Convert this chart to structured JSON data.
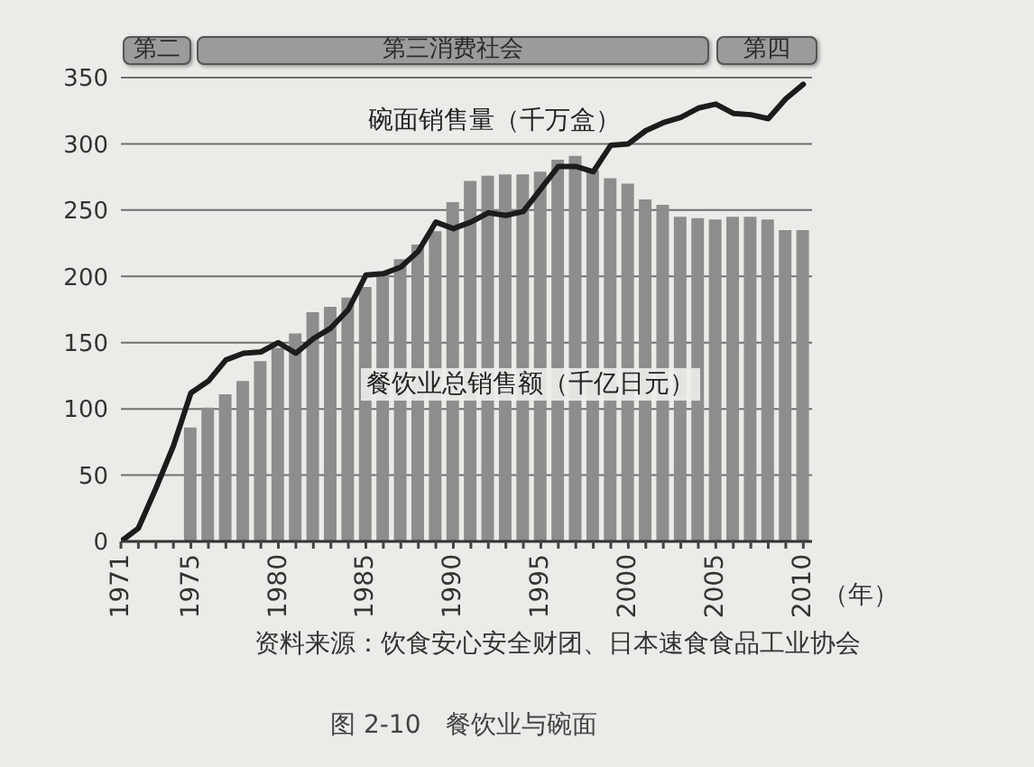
{
  "chart_data": {
    "type": "bar",
    "title": "图 2-10　餐饮业与碗面",
    "xlabel": "（年）",
    "annotations": [
      "第二",
      "第三消费社会",
      "第四",
      "资料来源：饮食安心安全财团、日本速食食品工业协会"
    ],
    "series": [
      {
        "name": "餐饮业总销售额（千亿日元）",
        "type": "bar",
        "color": "#8d8d8d",
        "x": [
          1975,
          1976,
          1977,
          1978,
          1979,
          1980,
          1981,
          1982,
          1983,
          1984,
          1985,
          1986,
          1987,
          1988,
          1989,
          1990,
          1991,
          1992,
          1993,
          1994,
          1995,
          1996,
          1997,
          1998,
          1999,
          2000,
          2001,
          2002,
          2003,
          2004,
          2005,
          2006,
          2007,
          2008,
          2009,
          2010
        ],
        "values": [
          86,
          101,
          111,
          121,
          136,
          146,
          157,
          173,
          177,
          184,
          192,
          202,
          213,
          224,
          234,
          256,
          272,
          276,
          277,
          277,
          279,
          288,
          291,
          280,
          274,
          270,
          258,
          254,
          245,
          244,
          243,
          245,
          245,
          243,
          235,
          235
        ]
      },
      {
        "name": "碗面销售量（千万盒）",
        "type": "line",
        "color": "#1c1c1c",
        "x": [
          1971,
          1972,
          1973,
          1974,
          1975,
          1976,
          1977,
          1978,
          1979,
          1980,
          1981,
          1982,
          1983,
          1984,
          1985,
          1986,
          1987,
          1988,
          1989,
          1990,
          1991,
          1992,
          1993,
          1994,
          1995,
          1996,
          1997,
          1998,
          1999,
          2000,
          2001,
          2002,
          2003,
          2004,
          2005,
          2006,
          2007,
          2008,
          2009,
          2010
        ],
        "values": [
          0,
          10,
          40,
          72,
          112,
          121,
          137,
          142,
          143,
          150,
          142,
          153,
          161,
          175,
          201,
          202,
          207,
          219,
          241,
          236,
          241,
          248,
          246,
          249,
          266,
          283,
          283,
          279,
          299,
          300,
          310,
          316,
          320,
          327,
          330,
          323,
          322,
          319,
          334,
          345
        ]
      }
    ],
    "xlim": [
      1971,
      2010.5
    ],
    "xticks": [
      1971,
      {
        "value": 1972,
        "label": null
      },
      {
        "value": 1973,
        "label": null
      },
      {
        "value": 1974,
        "label": null
      },
      1975,
      {
        "value": 1976,
        "label": null
      },
      {
        "value": 1977,
        "label": null
      },
      {
        "value": 1978,
        "label": null
      },
      {
        "value": 1979,
        "label": null
      },
      1980,
      {
        "value": 1981,
        "label": null
      },
      {
        "value": 1982,
        "label": null
      },
      {
        "value": 1983,
        "label": null
      },
      {
        "value": 1984,
        "label": null
      },
      1985,
      {
        "value": 1986,
        "label": null
      },
      {
        "value": 1987,
        "label": null
      },
      {
        "value": 1988,
        "label": null
      },
      {
        "value": 1989,
        "label": null
      },
      1990,
      {
        "value": 1991,
        "label": null
      },
      {
        "value": 1992,
        "label": null
      },
      {
        "value": 1993,
        "label": null
      },
      {
        "value": 1994,
        "label": null
      },
      1995,
      {
        "value": 1996,
        "label": null
      },
      {
        "value": 1997,
        "label": null
      },
      {
        "value": 1998,
        "label": null
      },
      {
        "value": 1999,
        "label": null
      },
      2000,
      {
        "value": 2001,
        "label": null
      },
      {
        "value": 2002,
        "label": null
      },
      {
        "value": 2003,
        "label": null
      },
      {
        "value": 2004,
        "label": null
      },
      2005,
      {
        "value": 2006,
        "label": null
      },
      {
        "value": 2007,
        "label": null
      },
      {
        "value": 2008,
        "label": null
      },
      {
        "value": 2009,
        "label": null
      },
      2010
    ],
    "ylim": [
      0,
      350
    ],
    "yticks": [
      0,
      50,
      100,
      150,
      200,
      250,
      300,
      350
    ],
    "grid": "y"
  }
}
